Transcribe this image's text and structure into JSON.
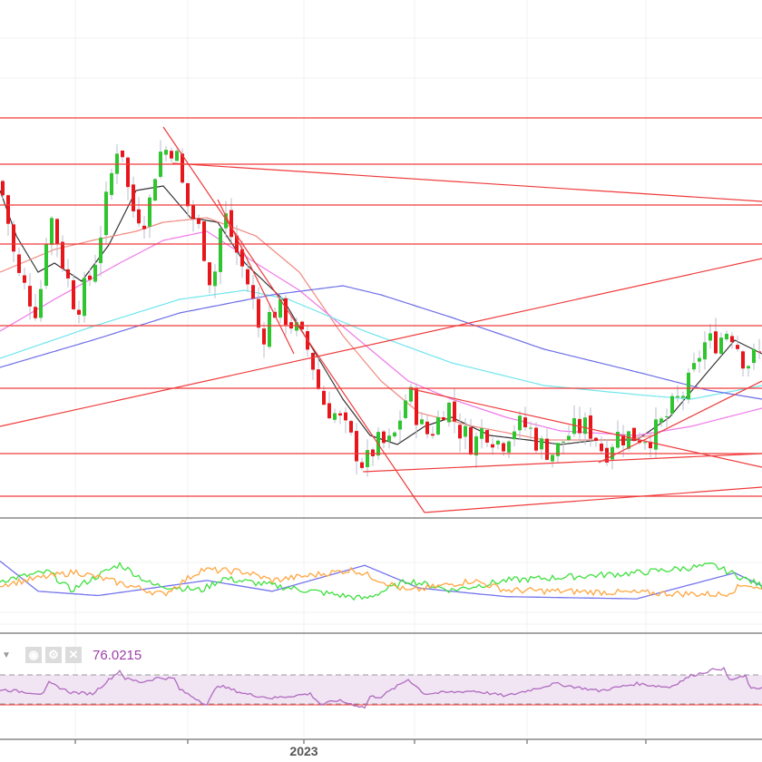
{
  "chart_data": {
    "type": "candlestick",
    "title": "",
    "x_unit": "bar index",
    "y_unit": "relative price",
    "xlim": [
      0,
      140
    ],
    "ylim": [
      0,
      114
    ],
    "grid": true,
    "colors": {
      "up": "#2fc52f",
      "down": "#e8151a",
      "wick": "#b8bccc",
      "level": "#f03a3a",
      "ma10": "#333333",
      "ma20": "#f08a80",
      "ma50": "#f07ae8",
      "ma100": "#6fe6ee",
      "ma200": "#6d6ee8"
    },
    "close_keypoints": [
      [
        0,
        74
      ],
      [
        2,
        62
      ],
      [
        3,
        54
      ],
      [
        7,
        45
      ],
      [
        9,
        68
      ],
      [
        12,
        54
      ],
      [
        14,
        46
      ],
      [
        17,
        54
      ],
      [
        19,
        66
      ],
      [
        22,
        85
      ],
      [
        24,
        68
      ],
      [
        27,
        66
      ],
      [
        29,
        80
      ],
      [
        32,
        82
      ],
      [
        34,
        70
      ],
      [
        37,
        62
      ],
      [
        39,
        50
      ],
      [
        41,
        68
      ],
      [
        43,
        60
      ],
      [
        46,
        50
      ],
      [
        48,
        39
      ],
      [
        50,
        46
      ],
      [
        52,
        45
      ],
      [
        54,
        42
      ],
      [
        57,
        36
      ],
      [
        59,
        26
      ],
      [
        62,
        22
      ],
      [
        64,
        18
      ],
      [
        67,
        11
      ],
      [
        69,
        16
      ],
      [
        72,
        16
      ],
      [
        75,
        28
      ],
      [
        78,
        18
      ],
      [
        80,
        20
      ],
      [
        82,
        26
      ],
      [
        84,
        20
      ],
      [
        87,
        16
      ],
      [
        89,
        20
      ],
      [
        92,
        16
      ],
      [
        94,
        20
      ],
      [
        97,
        20
      ],
      [
        99,
        16
      ],
      [
        102,
        14
      ],
      [
        104,
        18
      ],
      [
        107,
        20
      ],
      [
        109,
        19
      ],
      [
        111,
        14
      ],
      [
        113,
        18
      ],
      [
        117,
        18
      ],
      [
        120,
        18
      ],
      [
        123,
        23
      ],
      [
        127,
        30
      ],
      [
        129,
        38
      ],
      [
        132,
        39
      ],
      [
        134,
        42
      ],
      [
        137,
        34
      ],
      [
        140,
        36
      ]
    ],
    "moving_averages": [
      {
        "name": "MA short",
        "color_key": "ma10",
        "points": [
          [
            0,
            72
          ],
          [
            3,
            62
          ],
          [
            7,
            54
          ],
          [
            10,
            56
          ],
          [
            15,
            52
          ],
          [
            20,
            60
          ],
          [
            25,
            72
          ],
          [
            30,
            73
          ],
          [
            35,
            66
          ],
          [
            40,
            65
          ],
          [
            45,
            56
          ],
          [
            52,
            48
          ],
          [
            58,
            36
          ],
          [
            63,
            26
          ],
          [
            68,
            18
          ],
          [
            73,
            16
          ],
          [
            78,
            20
          ],
          [
            83,
            22
          ],
          [
            90,
            18
          ],
          [
            97,
            17
          ],
          [
            103,
            16
          ],
          [
            110,
            17
          ],
          [
            117,
            17
          ],
          [
            123,
            22
          ],
          [
            130,
            32
          ],
          [
            135,
            39
          ],
          [
            140,
            36
          ]
        ]
      },
      {
        "name": "MA 20",
        "color_key": "ma20",
        "points": [
          [
            0,
            54
          ],
          [
            10,
            59
          ],
          [
            17,
            61
          ],
          [
            25,
            63
          ],
          [
            30,
            65
          ],
          [
            38,
            66
          ],
          [
            47,
            62
          ],
          [
            55,
            54
          ],
          [
            63,
            40
          ],
          [
            70,
            30
          ],
          [
            77,
            23
          ],
          [
            87,
            20
          ],
          [
            100,
            17
          ],
          [
            113,
            17
          ],
          [
            120,
            18
          ],
          [
            130,
            24
          ],
          [
            140,
            30
          ]
        ]
      },
      {
        "name": "MA 50",
        "color_key": "ma50",
        "points": [
          [
            0,
            41
          ],
          [
            10,
            48
          ],
          [
            22,
            56
          ],
          [
            30,
            61
          ],
          [
            38,
            63
          ],
          [
            47,
            56
          ],
          [
            55,
            50
          ],
          [
            67,
            38
          ],
          [
            75,
            30
          ],
          [
            83,
            26
          ],
          [
            93,
            22
          ],
          [
            103,
            19
          ],
          [
            117,
            18
          ],
          [
            127,
            20
          ],
          [
            140,
            24
          ]
        ]
      },
      {
        "name": "MA 100",
        "color_key": "ma100",
        "points": [
          [
            0,
            35
          ],
          [
            17,
            42
          ],
          [
            33,
            48
          ],
          [
            45,
            50
          ],
          [
            53,
            48
          ],
          [
            67,
            41
          ],
          [
            83,
            34
          ],
          [
            100,
            29
          ],
          [
            117,
            27
          ],
          [
            127,
            26
          ],
          [
            140,
            29
          ]
        ]
      },
      {
        "name": "MA 200",
        "color_key": "ma200",
        "points": [
          [
            0,
            33
          ],
          [
            17,
            39
          ],
          [
            33,
            45
          ],
          [
            50,
            49
          ],
          [
            63,
            51
          ],
          [
            70,
            49
          ],
          [
            83,
            44
          ],
          [
            100,
            37
          ],
          [
            117,
            32
          ],
          [
            130,
            28
          ],
          [
            140,
            26
          ]
        ]
      }
    ],
    "horizontal_levels": [
      88,
      77.8,
      68.8,
      60.2,
      42.2,
      28.4,
      14,
      4.6
    ],
    "trend_lines": [
      [
        [
          30,
          86
        ],
        [
          78,
          1
        ]
      ],
      [
        [
          78,
          1
        ],
        [
          140,
          6.6
        ]
      ],
      [
        [
          31.7,
          78
        ],
        [
          140,
          69.6
        ]
      ],
      [
        [
          0,
          20
        ],
        [
          140,
          57
        ]
      ],
      [
        [
          66.7,
          10
        ],
        [
          140,
          14
        ]
      ],
      [
        [
          75,
          28.4
        ],
        [
          140,
          11
        ]
      ],
      [
        [
          110,
          12
        ],
        [
          140,
          30
        ]
      ],
      [
        [
          40,
          70
        ],
        [
          54,
          36
        ]
      ]
    ],
    "oscillator": {
      "ylim": [
        0,
        100
      ],
      "series": [
        {
          "name": "blue",
          "color": "#7474ee",
          "points": [
            [
              0,
              66
            ],
            [
              7,
              38
            ],
            [
              18,
              34
            ],
            [
              38,
              48
            ],
            [
              50,
              38
            ],
            [
              67,
              62
            ],
            [
              77,
              41
            ],
            [
              93,
              33
            ],
            [
              117,
              31
            ],
            [
              135,
              55
            ],
            [
              140,
              43
            ]
          ]
        },
        {
          "name": "green",
          "color": "#3fe03f",
          "points": [
            [
              0,
              48
            ],
            [
              9,
              56
            ],
            [
              13,
              39
            ],
            [
              22,
              63
            ],
            [
              28,
              44
            ],
            [
              37,
              39
            ],
            [
              41,
              50
            ],
            [
              67,
              31
            ],
            [
              75,
              48
            ],
            [
              83,
              39
            ],
            [
              93,
              48
            ],
            [
              117,
              55
            ],
            [
              131,
              62
            ],
            [
              140,
              43
            ]
          ]
        },
        {
          "name": "orange",
          "color": "#ffa640",
          "points": [
            [
              0,
              44
            ],
            [
              14,
              56
            ],
            [
              30,
              35
            ],
            [
              37,
              58
            ],
            [
              45,
              56
            ],
            [
              50,
              48
            ],
            [
              65,
              58
            ],
            [
              75,
              38
            ],
            [
              87,
              48
            ],
            [
              93,
              39
            ],
            [
              133,
              35
            ],
            [
              137,
              45
            ],
            [
              140,
              39
            ]
          ]
        }
      ]
    },
    "rsi": {
      "value_label": "76.0215",
      "upper_band": 70,
      "lower_band": 30,
      "ylim": [
        0,
        100
      ],
      "color": "#b06cc0",
      "points": [
        [
          0,
          50
        ],
        [
          8,
          44
        ],
        [
          9,
          59
        ],
        [
          13,
          46
        ],
        [
          17,
          44
        ],
        [
          22,
          76
        ],
        [
          23,
          65
        ],
        [
          26,
          60
        ],
        [
          29,
          66
        ],
        [
          32,
          65
        ],
        [
          33,
          50
        ],
        [
          38,
          29
        ],
        [
          40,
          56
        ],
        [
          45,
          44
        ],
        [
          50,
          38
        ],
        [
          57,
          44
        ],
        [
          59,
          29
        ],
        [
          62,
          35
        ],
        [
          67,
          25
        ],
        [
          68,
          40
        ],
        [
          70,
          40
        ],
        [
          75,
          64
        ],
        [
          78,
          44
        ],
        [
          87,
          48
        ],
        [
          93,
          41
        ],
        [
          102,
          58
        ],
        [
          110,
          48
        ],
        [
          117,
          58
        ],
        [
          123,
          53
        ],
        [
          127,
          69
        ],
        [
          132,
          79
        ],
        [
          133,
          78
        ],
        [
          134,
          63
        ],
        [
          137,
          68
        ],
        [
          138,
          50
        ],
        [
          140,
          53
        ]
      ]
    },
    "x_tick_labels": [
      "",
      "",
      "2023",
      "",
      "",
      ""
    ]
  },
  "legend": {
    "dropdown_icon": "caret-down-icon",
    "icons": [
      "eye-icon",
      "gear-icon",
      "close-icon"
    ]
  }
}
